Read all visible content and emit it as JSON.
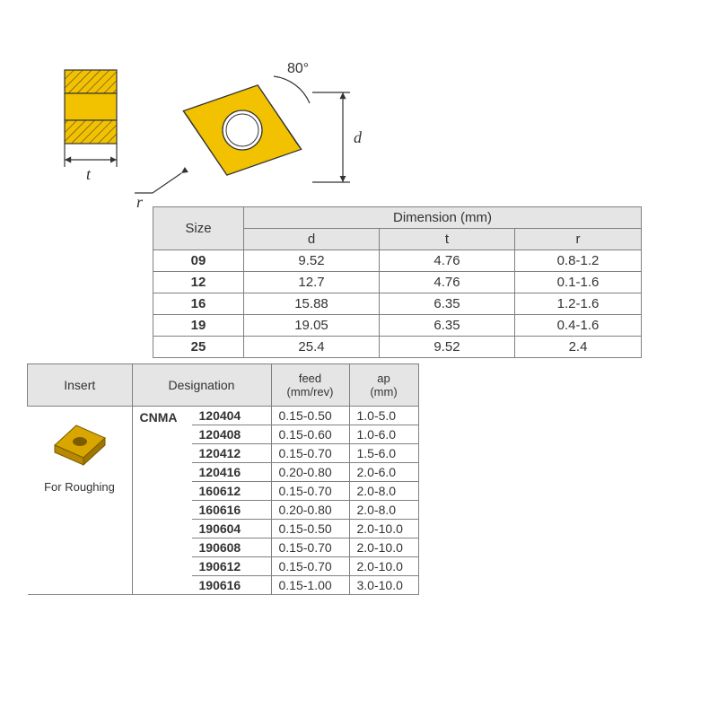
{
  "angle_label": "80°",
  "dim_labels": {
    "d": "d",
    "t": "t",
    "r": "r"
  },
  "colors": {
    "insert_fill": "#f2c200",
    "insert_stroke": "#333333",
    "hatch_stroke": "#333333",
    "table_header_bg": "#e5e5e5",
    "table_border": "#808080",
    "background": "#ffffff",
    "text": "#333333"
  },
  "dimension_table": {
    "size_header": "Size",
    "dimension_header": "Dimension (mm)",
    "cols": [
      "d",
      "t",
      "r"
    ],
    "rows": [
      {
        "size": "09",
        "d": "9.52",
        "t": "4.76",
        "r": "0.8-1.2"
      },
      {
        "size": "12",
        "d": "12.7",
        "t": "4.76",
        "r": "0.1-1.6"
      },
      {
        "size": "16",
        "d": "15.88",
        "t": "6.35",
        "r": "1.2-1.6"
      },
      {
        "size": "19",
        "d": "19.05",
        "t": "6.35",
        "r": "0.4-1.6"
      },
      {
        "size": "25",
        "d": "25.4",
        "t": "9.52",
        "r": "2.4"
      }
    ]
  },
  "designation_table": {
    "headers": {
      "insert": "Insert",
      "designation": "Designation",
      "feed": "feed\n(mm/rev)",
      "ap": "ap\n(mm)"
    },
    "insert_caption": "For Roughing",
    "code": "CNMA",
    "rows": [
      {
        "num": "120404",
        "feed": "0.15-0.50",
        "ap": "1.0-5.0"
      },
      {
        "num": "120408",
        "feed": "0.15-0.60",
        "ap": "1.0-6.0"
      },
      {
        "num": "120412",
        "feed": "0.15-0.70",
        "ap": "1.5-6.0"
      },
      {
        "num": "120416",
        "feed": "0.20-0.80",
        "ap": "2.0-6.0"
      },
      {
        "num": "160612",
        "feed": "0.15-0.70",
        "ap": "2.0-8.0"
      },
      {
        "num": "160616",
        "feed": "0.20-0.80",
        "ap": "2.0-8.0"
      },
      {
        "num": "190604",
        "feed": "0.15-0.50",
        "ap": "2.0-10.0"
      },
      {
        "num": "190608",
        "feed": "0.15-0.70",
        "ap": "2.0-10.0"
      },
      {
        "num": "190612",
        "feed": "0.15-0.70",
        "ap": "2.0-10.0"
      },
      {
        "num": "190616",
        "feed": "0.15-1.00",
        "ap": "3.0-10.0"
      }
    ]
  }
}
